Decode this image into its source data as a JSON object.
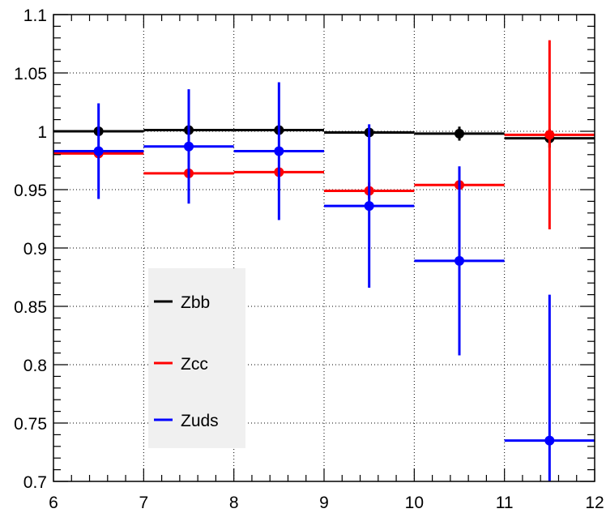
{
  "chart_data": {
    "type": "scatter",
    "title": "",
    "xlabel": "",
    "ylabel": "",
    "xlim": [
      6,
      12
    ],
    "ylim": [
      0.7,
      1.1
    ],
    "grid": true,
    "legend_position": "left-center",
    "x_ticks": [
      6,
      7,
      8,
      9,
      10,
      11,
      12
    ],
    "y_ticks": [
      0.7,
      0.75,
      0.8,
      0.85,
      0.9,
      0.95,
      1,
      1.05,
      1.1
    ],
    "x_tick_labels": [
      "6",
      "7",
      "8",
      "9",
      "10",
      "11",
      "12"
    ],
    "y_tick_labels": [
      "0.7",
      "0.75",
      "0.8",
      "0.85",
      "0.9",
      "0.95",
      "1",
      "1.05",
      "1.1"
    ],
    "series": [
      {
        "name": "Zbb",
        "color": "#000000",
        "bins": [
          [
            6,
            7
          ],
          [
            7,
            8
          ],
          [
            8,
            9
          ],
          [
            9,
            10
          ],
          [
            10,
            11
          ],
          [
            11,
            12
          ]
        ],
        "x": [
          6.5,
          7.5,
          8.5,
          9.5,
          10.5,
          11.5
        ],
        "y": [
          1.0,
          1.001,
          1.001,
          0.999,
          0.998,
          0.994
        ],
        "yerr": [
          0.003,
          0.003,
          0.003,
          0.004,
          0.006,
          0.008
        ]
      },
      {
        "name": "Zcc",
        "color": "#ff0000",
        "bins": [
          [
            6,
            7
          ],
          [
            7,
            8
          ],
          [
            8,
            9
          ],
          [
            9,
            10
          ],
          [
            10,
            11
          ],
          [
            11,
            12
          ]
        ],
        "x": [
          6.5,
          7.5,
          8.5,
          9.5,
          10.5,
          11.5
        ],
        "y": [
          0.981,
          0.964,
          0.965,
          0.949,
          0.954,
          0.997
        ],
        "yerr": [
          0.004,
          0.004,
          0.004,
          0.007,
          0.015,
          0.081
        ]
      },
      {
        "name": "Zuds",
        "color": "#0000ff",
        "bins": [
          [
            6,
            7
          ],
          [
            7,
            8
          ],
          [
            8,
            9
          ],
          [
            9,
            10
          ],
          [
            10,
            11
          ],
          [
            11,
            12
          ]
        ],
        "x": [
          6.5,
          7.5,
          8.5,
          9.5,
          10.5,
          11.5
        ],
        "y": [
          0.983,
          0.987,
          0.983,
          0.936,
          0.889,
          0.735
        ],
        "yerr": [
          0.041,
          0.049,
          0.059,
          0.07,
          0.081,
          0.125
        ]
      }
    ]
  }
}
